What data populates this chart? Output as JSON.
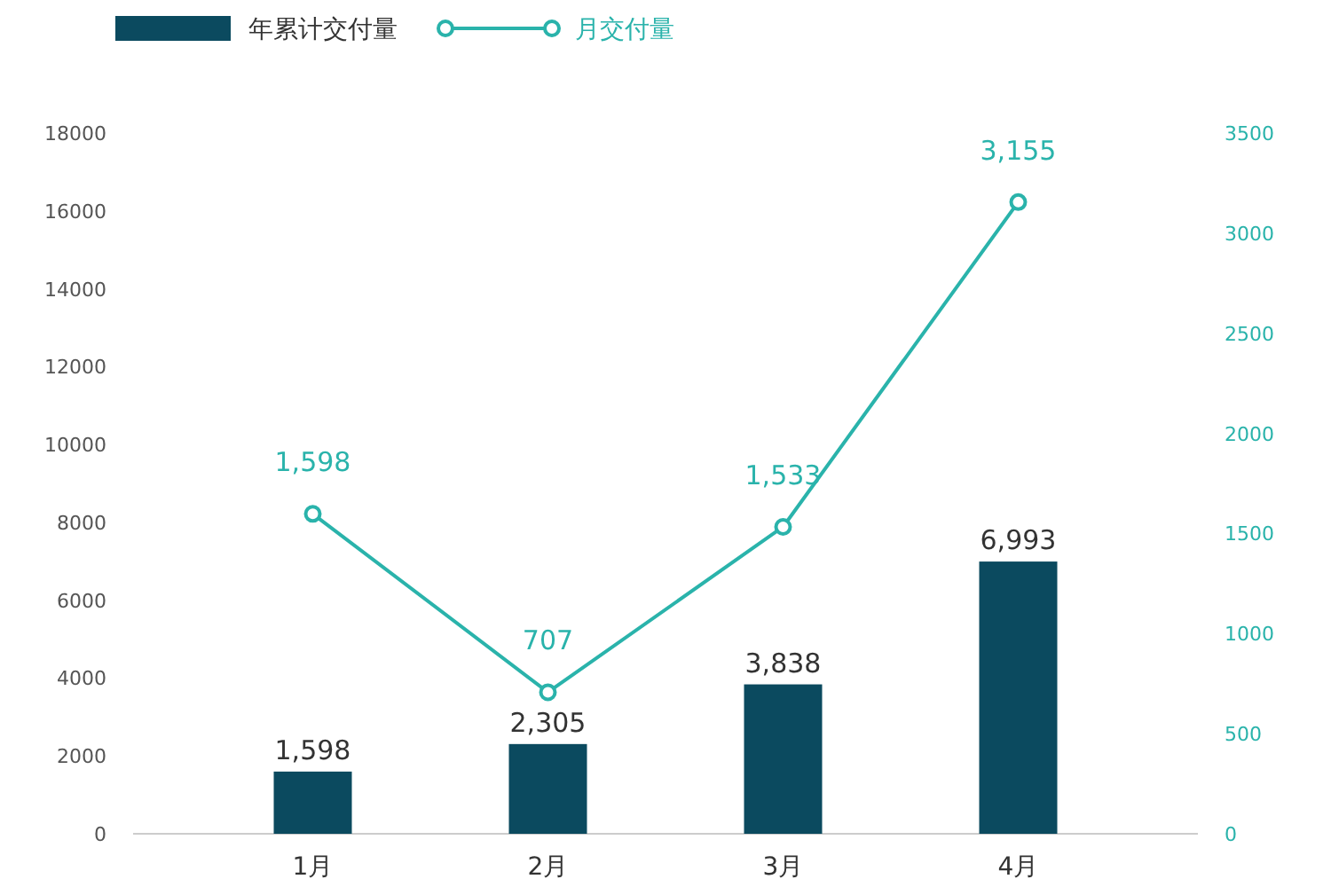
{
  "chart_data": {
    "type": "bar",
    "categories": [
      "1月",
      "2月",
      "3月",
      "4月"
    ],
    "legend": "top left",
    "series": [
      {
        "name": "年累计交付量",
        "color": "#0b4a5f",
        "values": [
          1598,
          2305,
          3838,
          6993
        ],
        "value_labels": [
          "1,598",
          "2,305",
          "3,838",
          "6,993"
        ]
      },
      {
        "name": "月交付量",
        "type": "line",
        "axis": "y2",
        "color": "#2ab3ab",
        "marker": "circle",
        "values": [
          1598,
          707,
          1533,
          3155
        ],
        "value_labels": [
          "1,598",
          "707",
          "1,533",
          "3,155"
        ]
      }
    ],
    "ylim": [
      0,
      18000
    ],
    "yticks": [
      0,
      2000,
      4000,
      6000,
      8000,
      10000,
      12000,
      14000,
      16000,
      18000
    ],
    "y2lim": [
      0,
      3500
    ],
    "y2ticks": [
      0,
      500,
      1000,
      1500,
      2000,
      2500,
      3000,
      3500
    ]
  }
}
